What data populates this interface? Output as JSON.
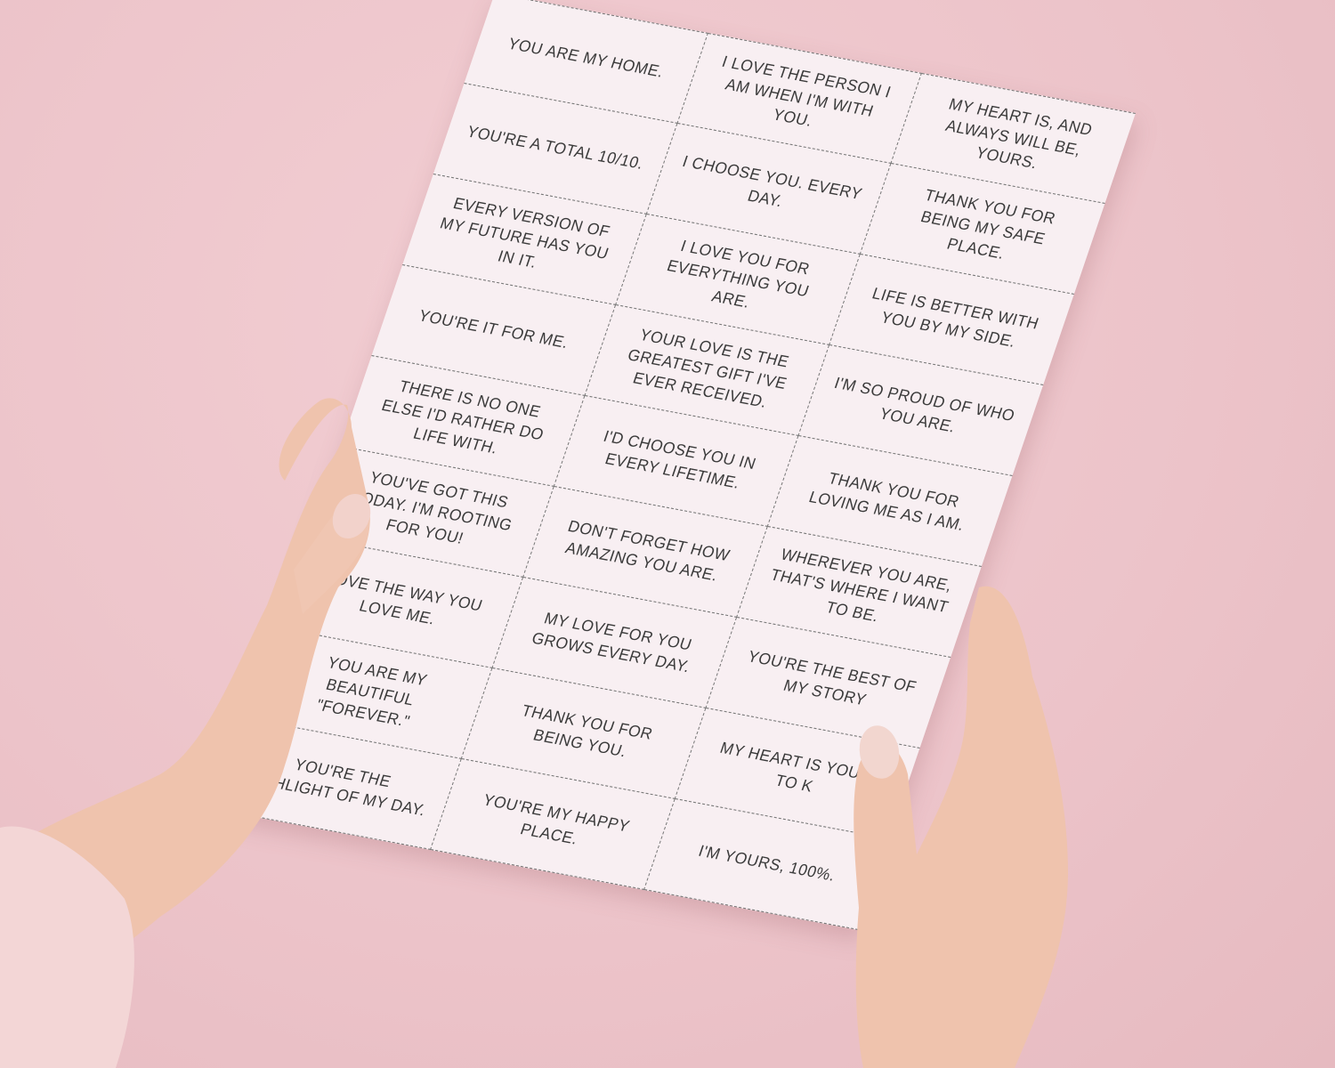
{
  "colors": {
    "background": "#eec6cb",
    "paper": "#f8eff2",
    "skin": "#efc3ad",
    "sleeve": "#f3d6d6",
    "text": "#3a3a3a"
  },
  "sheet": {
    "columns": [
      [
        "You are my home.",
        "You're a total 10/10.",
        "Every version of my future has you in it.",
        "You're it for me.",
        "There is no one else I'd rather do life with.",
        "You've got this today. I'm rooting for you!",
        "Love the way you love me.",
        "You are my beautiful \"forever.\"",
        "You're the highlight of my day."
      ],
      [
        "I love the person I am when I'm with you.",
        "I choose you. Every day.",
        "I love you for everything you are.",
        "Your love is the greatest gift I've ever received.",
        "I'd choose you in every lifetime.",
        "Don't forget how amazing you are.",
        "My love for you grows every day.",
        "Thank you for being you.",
        "You're my happy place."
      ],
      [
        "My heart is, and always will be, yours.",
        "Thank you for being my safe place.",
        "Life is better with you by my side.",
        "I'm so proud of who you are.",
        "Thank you for loving me as I am.",
        "Wherever you are, that's where I want to be.",
        "You're the best of my story",
        "My heart is yours to k",
        "I'm yours, 100%."
      ]
    ]
  }
}
